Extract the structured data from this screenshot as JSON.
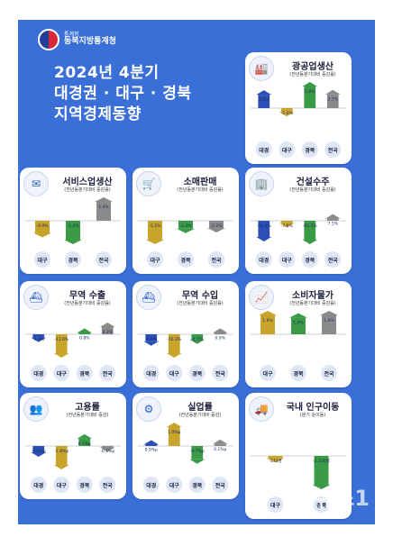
{
  "header": {
    "logo_sub": "통계청",
    "logo_main": "동북지방통계청",
    "title_line1": "2024년 4분기",
    "title_line2": "대경권 · 대구 · 경북",
    "title_line3": "지역경제동향"
  },
  "colors": {
    "daegyeong": "#2b4fb5",
    "daegu": "#c9a42b",
    "gyeongbuk": "#3a9a46",
    "national": "#8a8a8a"
  },
  "watermark": "뉴스1",
  "chart_data": [
    {
      "type": "bar",
      "title": "광공업생산",
      "subtitle": "(전년동분기대비 증감률)",
      "icon": "factory-icon",
      "categories": [
        "대경",
        "대구",
        "경북",
        "전국"
      ],
      "values": [
        3.6,
        -1.0,
        5.8,
        3.7
      ],
      "labels": [
        "3.6%",
        "-1.0%",
        "5.8%",
        "3.7%"
      ]
    },
    {
      "type": "bar",
      "title": "서비스업생산",
      "subtitle": "(전년동분기대비 증감률)",
      "icon": "service-icon",
      "categories": [
        "대구",
        "경북",
        "전국"
      ],
      "values": [
        -0.9,
        -1.4,
        1.4
      ],
      "labels": [
        "-0.9%",
        "-1.4%",
        "1.4%"
      ]
    },
    {
      "type": "bar",
      "title": "소매판매",
      "subtitle": "(전년동분기대비 증감률)",
      "icon": "cart-icon",
      "categories": [
        "대구",
        "경북",
        "전국"
      ],
      "values": [
        -5.5,
        -2.3,
        -2.1
      ],
      "labels": [
        "-5.5%",
        "-2.3%",
        "-2.1%"
      ]
    },
    {
      "type": "bar",
      "title": "건설수주",
      "subtitle": "(전년동분기대비 증감률)",
      "icon": "building-icon",
      "categories": [
        "대경",
        "대구",
        "경북",
        "전국"
      ],
      "values": [
        -56.0,
        -7.6,
        -65.3,
        7.5
      ],
      "labels": [
        "-56.0%",
        "-7.6%",
        "-65.3%",
        "7.5%"
      ]
    },
    {
      "type": "bar",
      "title": "무역 수출",
      "subtitle": "(전년동분기대비 증감률)",
      "icon": "export-ship-icon",
      "categories": [
        "대경",
        "대구",
        "경북",
        "전국"
      ],
      "values": [
        -1.9,
        -11.0,
        0.8,
        4.2
      ],
      "labels": [
        "-1.9%",
        "-11.0%",
        "0.8%",
        "4.2%"
      ]
    },
    {
      "type": "bar",
      "title": "무역 수입",
      "subtitle": "(전년동분기대비 증감률)",
      "icon": "import-ship-icon",
      "categories": [
        "대경",
        "대구",
        "경북",
        "전국"
      ],
      "values": [
        -6.0,
        -16.3,
        -4.5,
        0.9
      ],
      "labels": [
        "-6.0%",
        "-16.3%",
        "-4.5%",
        "0.9%"
      ]
    },
    {
      "type": "bar",
      "title": "소비자물가",
      "subtitle": "(전년동분기대비 증감률)",
      "icon": "price-chart-icon",
      "categories": [
        "대구",
        "경북",
        "전국"
      ],
      "values": [
        1.6,
        1.4,
        1.6
      ],
      "labels": [
        "1.6%",
        "1.4%",
        "1.6%"
      ]
    },
    {
      "type": "bar",
      "title": "고용률",
      "subtitle": "(전년동분기대비 증감)",
      "icon": "employment-icon",
      "categories": [
        "대경",
        "대구",
        "경북",
        "전국"
      ],
      "values": [
        -0.6,
        -1.8,
        0.7,
        -0.1
      ],
      "labels": [
        "-0.6%p",
        "-1.8%p",
        "0.7%p",
        "-0.1%p"
      ]
    },
    {
      "type": "bar",
      "title": "실업률",
      "subtitle": "(전년동분기대비 증감)",
      "icon": "unemployment-icon",
      "categories": [
        "대경",
        "대구",
        "경북",
        "전국"
      ],
      "values": [
        0.0,
        1.0,
        -0.7,
        0.1
      ],
      "labels": [
        "0.0%p",
        "1.0%p",
        "-0.7%p",
        "0.1%p"
      ]
    },
    {
      "type": "bar",
      "title": "국내 인구이동",
      "subtitle": "(분기 순이동)",
      "icon": "moving-truck-icon",
      "categories": [
        "대구",
        "경북"
      ],
      "values": [
        -173,
        -2330
      ],
      "labels": [
        "-173명",
        "-2,330명"
      ]
    }
  ]
}
